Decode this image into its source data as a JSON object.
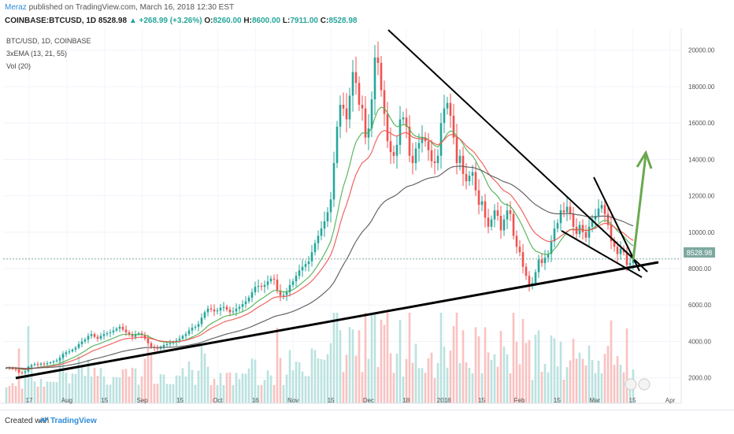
{
  "header": {
    "author": "Meraz",
    "published": " published on TradingView.com, March 16, 2018 12:30 EST",
    "symbol": "COINBASE:BTCUSD, 1D",
    "last": "8528.98",
    "change": "▲ +268.99 (+3.26%)",
    "o_label": "O:",
    "o_value": "8260.00",
    "h_label": "H:",
    "h_value": "8600.00",
    "l_label": "L:",
    "l_value": "7911.00",
    "c_label": "C:",
    "c_value": "8528.98"
  },
  "legend": {
    "pair": "BTC/USD, 1D, COINBASE",
    "ema": "3xEMA (13, 21, 55)",
    "vol": "Vol (20)"
  },
  "footer": {
    "created": "Created with",
    "brand": "TradingView"
  },
  "colors": {
    "up": "#26a69a",
    "down": "#ef5350",
    "ema13": "#4caf50",
    "ema21": "#ef5350",
    "ema55": "#555555",
    "trend": "#000000",
    "arrow": "#6aa84f",
    "price_tag": "#7da8a0"
  },
  "chart_data": {
    "type": "candlestick",
    "symbol": "BTC/USD",
    "timeframe": "1D",
    "exchange": "COINBASE",
    "y_ticks": [
      2000,
      4000,
      6000,
      8000,
      10000,
      12000,
      14000,
      16000,
      18000,
      20000
    ],
    "y_tick_labels": [
      "2000.00",
      "4000.00",
      "6000.00",
      "8000.00",
      "10000.00",
      "12000.00",
      "14000.00",
      "16000.00",
      "18000.00",
      "20000.00"
    ],
    "ylim": [
      600,
      21200
    ],
    "x_ticks": [
      "17",
      "Aug",
      "15",
      "Sep",
      "15",
      "Oct",
      "16",
      "Nov",
      "15",
      "Dec",
      "18",
      "2018",
      "15",
      "Feb",
      "15",
      "Mar",
      "15",
      "Apr"
    ],
    "last_price_label": "8528.98",
    "closes": [
      2550,
      2520,
      2480,
      2450,
      2300,
      2280,
      2350,
      2600,
      2700,
      2750,
      2720,
      2780,
      2750,
      2800,
      2850,
      2900,
      2950,
      3100,
      3300,
      3400,
      3450,
      3550,
      3650,
      3850,
      4000,
      4100,
      4300,
      4400,
      4250,
      4150,
      4300,
      4400,
      4450,
      4500,
      4600,
      4700,
      4800,
      4650,
      4500,
      4400,
      4250,
      4400,
      4450,
      4350,
      4150,
      3900,
      3700,
      3650,
      3600,
      3700,
      3800,
      3850,
      3900,
      3950,
      4050,
      4150,
      4300,
      4400,
      4600,
      4750,
      4800,
      4950,
      5300,
      5600,
      5800,
      5750,
      5650,
      5700,
      5850,
      5900,
      5750,
      5600,
      5650,
      5800,
      5900,
      6050,
      6200,
      6400,
      6700,
      7000,
      7050,
      7000,
      7100,
      7300,
      7450,
      7400,
      6800,
      6500,
      6550,
      6700,
      7100,
      7300,
      7600,
      7900,
      8100,
      8250,
      8400,
      8900,
      9400,
      9800,
      10200,
      10600,
      11100,
      11800,
      13800,
      15800,
      17000,
      16800,
      16200,
      17500,
      18800,
      18200,
      17000,
      16800,
      15200,
      15700,
      17300,
      19600,
      19300,
      17800,
      16500,
      15000,
      14400,
      14200,
      14800,
      16200,
      16300,
      15800,
      14200,
      13800,
      14600,
      14900,
      15200,
      15000,
      14500,
      13900,
      13800,
      14200,
      16000,
      16800,
      17100,
      16400,
      15200,
      13800,
      14200,
      13200,
      12800,
      13100,
      13300,
      12300,
      11500,
      11700,
      10800,
      10300,
      10700,
      11200,
      10900,
      10100,
      10700,
      11200,
      11000,
      9800,
      9200,
      8900,
      8100,
      7600,
      7100,
      7200,
      7800,
      8500,
      8300,
      8600,
      8800,
      9500,
      10200,
      10500,
      11200,
      11100,
      11400,
      11000,
      10300,
      9900,
      10400,
      10000,
      9700,
      10300,
      10700,
      10900,
      11300,
      11500,
      11000,
      10400,
      9500,
      9200,
      8800,
      9100,
      8900,
      8200,
      8300,
      8528
    ],
    "ema13_label": "EMA 13",
    "ema21_label": "EMA 21",
    "ema55_label": "EMA 55"
  }
}
